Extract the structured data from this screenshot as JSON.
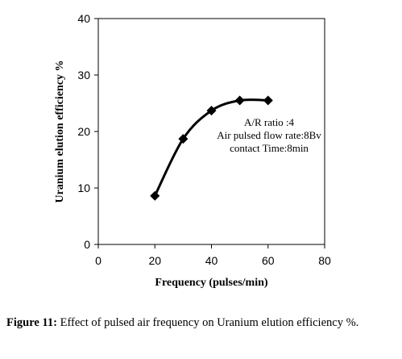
{
  "chart_data": {
    "type": "line",
    "title": "",
    "xlabel": "Frequency (pulses/min)",
    "ylabel": "Uranium elution efficiency %",
    "xlim": [
      0,
      80
    ],
    "ylim": [
      0,
      40
    ],
    "xticks": [
      0,
      20,
      40,
      60,
      80
    ],
    "yticks": [
      0,
      10,
      20,
      30,
      40
    ],
    "x_tick_labels": [
      "0",
      "20",
      "40",
      "60",
      "80"
    ],
    "y_tick_labels": [
      "0",
      "10",
      "20",
      "30",
      "40"
    ],
    "grid": false,
    "legend": "none",
    "marker": "diamond",
    "smooth": true,
    "series_color": "#000000",
    "series": [
      {
        "x": [
          20,
          30,
          40,
          50,
          60
        ],
        "y": [
          8.6,
          18.7,
          23.7,
          25.5,
          25.5
        ]
      }
    ],
    "annotations": [
      "A/R ratio :4",
      "Air pulsed flow rate:8Bv",
      "contact Time:8min"
    ]
  },
  "caption": {
    "label": "Figure 11:",
    "text": " Effect of pulsed air frequency on Uranium elution efficiency %."
  }
}
